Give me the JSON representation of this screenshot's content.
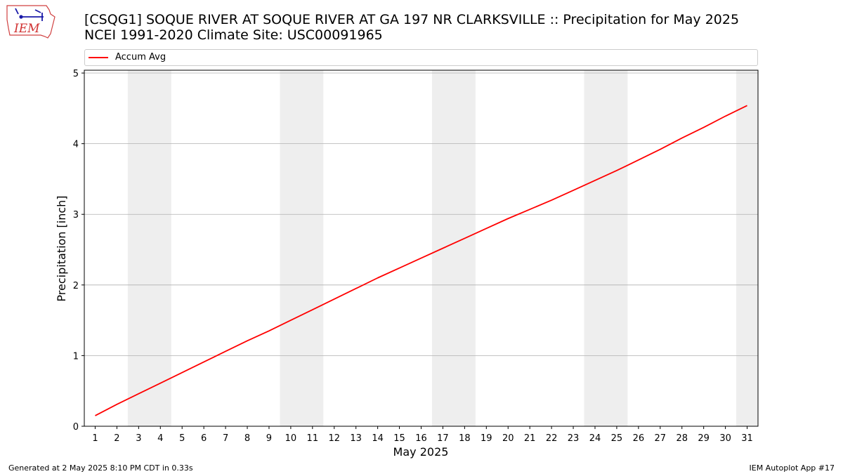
{
  "header": {
    "title_line1": "[CSQG1] SOQUE RIVER  AT SOQUE RIVER AT GA 197 NR CLARKSVILLE :: Precipitation for May 2025",
    "title_line2": "NCEI 1991-2020 Climate Site: USC00091965",
    "logo_text": "IEM"
  },
  "footer": {
    "left": "Generated at 2 May 2025 8:10 PM CDT in 0.33s",
    "right": "IEM Autoplot App #17"
  },
  "chart_data": {
    "type": "line",
    "title": "[CSQG1] SOQUE RIVER  AT SOQUE RIVER AT GA 197 NR CLARKSVILLE :: Precipitation for May 2025",
    "subtitle": "NCEI 1991-2020 Climate Site: USC00091965",
    "xlabel": "May 2025",
    "ylabel": "Precipitation [inch]",
    "x": [
      1,
      2,
      3,
      4,
      5,
      6,
      7,
      8,
      9,
      10,
      11,
      12,
      13,
      14,
      15,
      16,
      17,
      18,
      19,
      20,
      21,
      22,
      23,
      24,
      25,
      26,
      27,
      28,
      29,
      30,
      31
    ],
    "xlim": [
      0.5,
      31.5
    ],
    "ylim": [
      0,
      5.04
    ],
    "yticks": [
      0,
      1,
      2,
      3,
      4,
      5
    ],
    "grid": "y",
    "legend": "top",
    "weekend_shading": [
      [
        2.5,
        4.5
      ],
      [
        9.5,
        11.5
      ],
      [
        16.5,
        18.5
      ],
      [
        23.5,
        25.5
      ],
      [
        30.5,
        31.5
      ]
    ],
    "series": [
      {
        "name": "Accum Avg",
        "color": "#ff0000",
        "values": [
          0.15,
          0.31,
          0.46,
          0.61,
          0.76,
          0.91,
          1.06,
          1.21,
          1.35,
          1.5,
          1.65,
          1.8,
          1.95,
          2.1,
          2.24,
          2.38,
          2.52,
          2.66,
          2.8,
          2.94,
          3.07,
          3.2,
          3.34,
          3.48,
          3.62,
          3.77,
          3.92,
          4.08,
          4.23,
          4.39,
          4.54
        ]
      }
    ]
  }
}
